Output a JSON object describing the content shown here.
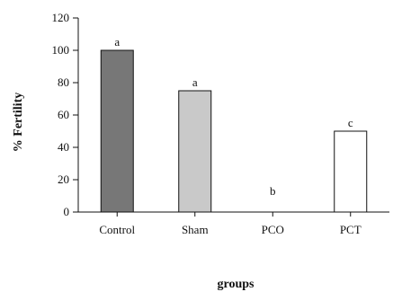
{
  "chart_data": {
    "type": "bar",
    "title": "",
    "xlabel": "groups",
    "ylabel": "% Fertility",
    "ylim": [
      0,
      120
    ],
    "yticks": [
      0,
      20,
      40,
      60,
      80,
      100,
      120
    ],
    "categories": [
      "Control",
      "Sham",
      "PCO",
      "PCT"
    ],
    "values": [
      100,
      75,
      0,
      50
    ],
    "significance_labels": [
      "a",
      "a",
      "b",
      "c"
    ],
    "bar_colors": [
      "#777777",
      "#c9c9c9",
      "#ffffff",
      "#ffffff"
    ],
    "grid": false,
    "legend": "none"
  }
}
